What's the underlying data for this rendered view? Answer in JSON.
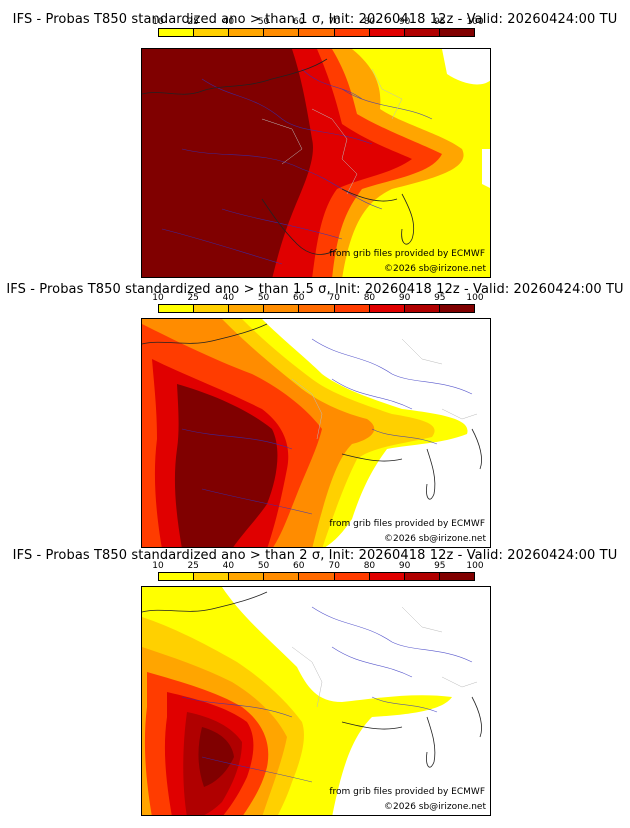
{
  "colorbar": {
    "ticks": [
      "10",
      "25",
      "40",
      "50",
      "60",
      "70",
      "80",
      "90",
      "95",
      "100"
    ],
    "colors": [
      "#ffff00",
      "#ffd000",
      "#ffa500",
      "#ff8c00",
      "#ff6a00",
      "#ff3c00",
      "#e00000",
      "#b00000",
      "#800000"
    ]
  },
  "panels": [
    {
      "title": "IFS - Probas T850  standardized ano > than 1 σ, Init: 20260418 12z - Valid: 20260424:00 TU",
      "credit_source": "from grib files provided by ECMWF",
      "copyright": "©2026 sb@irizone.net"
    },
    {
      "title": "IFS - Probas T850  standardized ano > than 1.5 σ, Init: 20260418 12z - Valid: 20260424:00 TU",
      "credit_source": "from grib files provided by ECMWF",
      "copyright": "©2026 sb@irizone.net"
    },
    {
      "title": "IFS - Probas T850  standardized ano > than 2 σ, Init: 20260418 12z - Valid: 20260424:00 TU",
      "credit_source": "from grib files provided by ECMWF",
      "copyright": "©2026 sb@irizone.net"
    }
  ]
}
